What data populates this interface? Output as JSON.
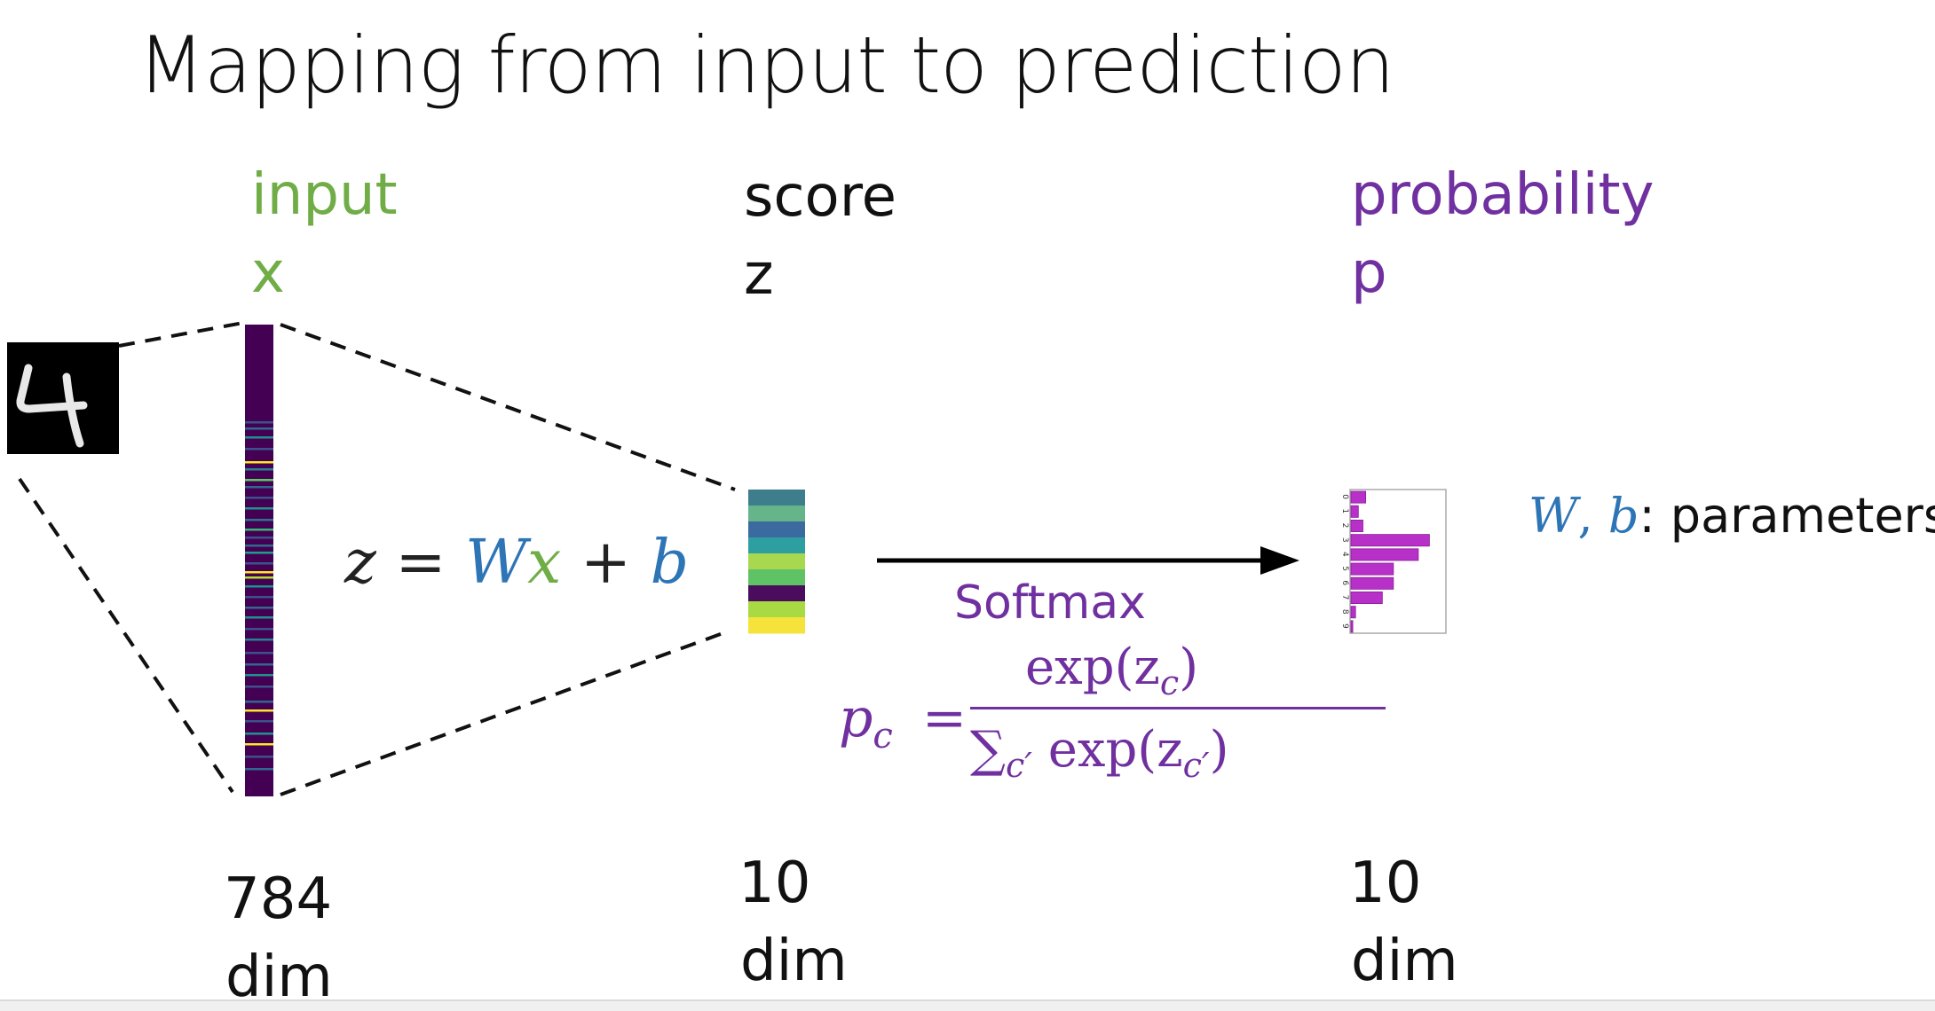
{
  "title": "Mapping from input to prediction",
  "columns": {
    "input": {
      "name": "input",
      "symbol": "x",
      "dim_value": "784",
      "dim_unit": "dim"
    },
    "score": {
      "name": "score",
      "symbol": "z",
      "dim_value": "10",
      "dim_unit": "dim"
    },
    "probability": {
      "name": "probability",
      "symbol": "p",
      "dim_value": "10",
      "dim_unit": "dim"
    }
  },
  "equation": {
    "lhs": "z",
    "eq": "=",
    "W": "W",
    "x": "x",
    "plus": "+",
    "b": "b"
  },
  "softmax": {
    "label": "Softmax",
    "p": "p",
    "sub_c": "c",
    "eq": "=",
    "numerator": "exp(z",
    "numerator_close": ")",
    "denominator_sum": "∑",
    "denominator_sub": "c′",
    "denominator_exp": "exp(z",
    "denominator_close": ")"
  },
  "parameters": {
    "W": "W",
    "comma": ", ",
    "b": "b",
    "text": ": parameters"
  },
  "prob_axis_ticks": [
    "0",
    "1",
    "2",
    "3",
    "4",
    "5",
    "6",
    "7",
    "8",
    "9"
  ],
  "prob_values": [
    0.16,
    0.08,
    0.13,
    0.85,
    0.73,
    0.46,
    0.46,
    0.34,
    0.05,
    0.02
  ],
  "score_colors": [
    "#3e7d8c",
    "#66b58a",
    "#3b6aa0",
    "#2d9fa0",
    "#a8d84f",
    "#5fc264",
    "#4a0c5c",
    "#a7da43",
    "#f5e33c"
  ],
  "colors": {
    "green": "#70ad47",
    "purple": "#7030a0",
    "blue": "#2e75b6",
    "magenta": "#b730c8",
    "dark": "#111111"
  },
  "digit_image": {
    "digit": "4"
  }
}
